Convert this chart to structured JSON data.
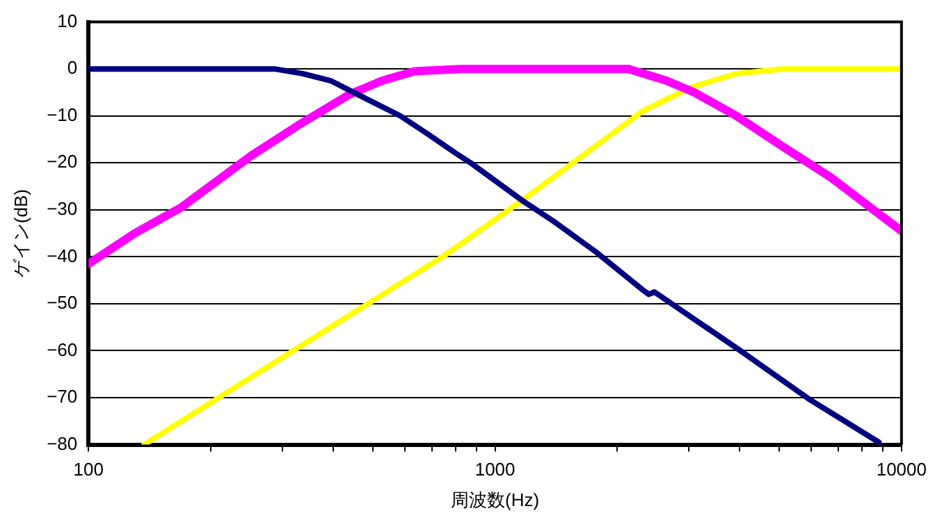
{
  "chart_data": {
    "type": "line",
    "xlabel": "周波数(Hz)",
    "ylabel": "ゲイン(dB)",
    "log": "x",
    "xlim": [
      100,
      10000
    ],
    "xticks": [
      100,
      {
        "value": 200,
        "label": null
      },
      {
        "value": 300,
        "label": null
      },
      {
        "value": 400,
        "label": null
      },
      {
        "value": 500,
        "label": null
      },
      {
        "value": 600,
        "label": null
      },
      {
        "value": 700,
        "label": null
      },
      {
        "value": 800,
        "label": null
      },
      {
        "value": 900,
        "label": null
      },
      1000,
      {
        "value": 2000,
        "label": null
      },
      {
        "value": 3000,
        "label": null
      },
      {
        "value": 4000,
        "label": null
      },
      {
        "value": 5000,
        "label": null
      },
      {
        "value": 6000,
        "label": null
      },
      {
        "value": 7000,
        "label": null
      },
      {
        "value": 8000,
        "label": null
      },
      {
        "value": 9000,
        "label": null
      },
      10000
    ],
    "ylim": [
      -80,
      10
    ],
    "yticks": [
      -80,
      -70,
      -60,
      -50,
      -40,
      -30,
      -20,
      -10,
      0,
      10
    ],
    "grid": "y",
    "legend": false,
    "line_style": "solid",
    "series": [
      {
        "color": "#000080",
        "x": [
          100,
          287,
          336,
          394,
          461,
          585,
          687,
          802,
          871,
          1166,
          1397,
          1773,
          2305,
          2391,
          2467,
          3939,
          5970,
          8800
        ],
        "values": [
          0,
          0,
          -1,
          -2.5,
          -5.5,
          -10,
          -14,
          -18,
          -20,
          -28,
          -32.5,
          -39,
          -47,
          -48,
          -47.5,
          -59.5,
          -70.5,
          -79.5
        ]
      },
      {
        "color": "#ff00ff",
        "x": [
          100,
          130,
          169,
          251,
          328,
          437,
          528,
          634,
          824,
          2131,
          2641,
          3094,
          3925,
          5098,
          6675,
          10000
        ],
        "values": [
          -41.5,
          -35,
          -29.5,
          -18.5,
          -12,
          -5.5,
          -2.5,
          -0.5,
          0,
          0,
          -2.5,
          -5,
          -10,
          -16.5,
          -23,
          -34.5
        ]
      },
      {
        "color": "#ffff00",
        "x": [
          137,
          287,
          743,
          802,
          1166,
          1641,
          2305,
          3020,
          3925,
          5098,
          10000
        ],
        "values": [
          -80,
          -62.5,
          -40,
          -38,
          -28,
          -18.5,
          -9,
          -4,
          -1,
          0,
          0
        ]
      }
    ]
  }
}
